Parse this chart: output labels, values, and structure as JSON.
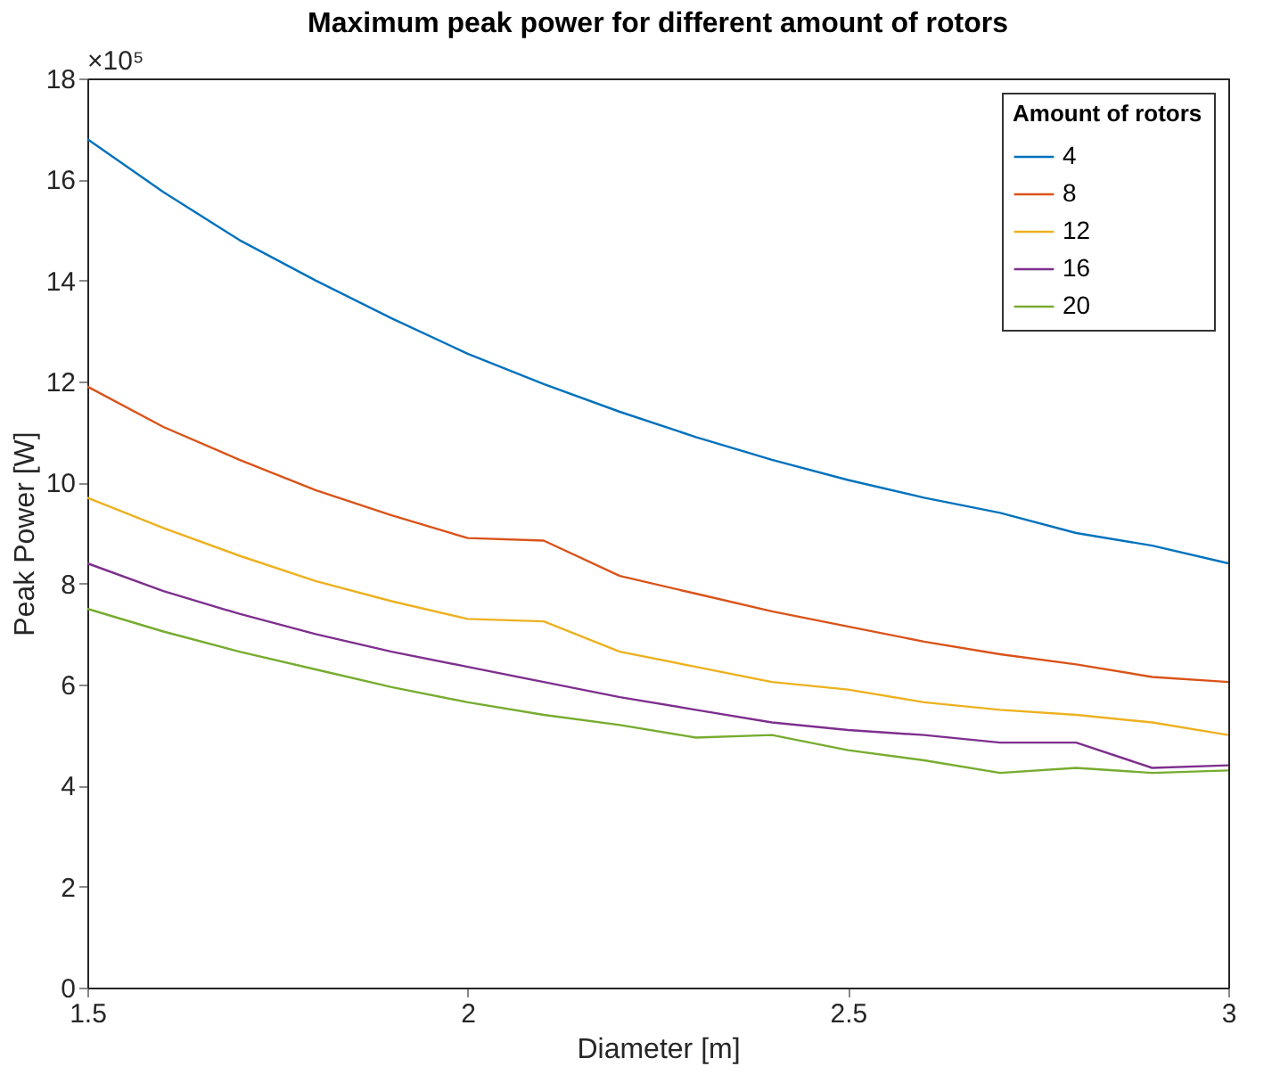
{
  "chart_data": {
    "type": "line",
    "title": "Maximum peak power for different amount of rotors",
    "xlabel": "Diameter [m]",
    "ylabel": "Peak Power [W]",
    "legend_title": "Amount of rotors",
    "x": [
      1.5,
      1.6,
      1.7,
      1.8,
      1.9,
      2.0,
      2.1,
      2.2,
      2.3,
      2.4,
      2.5,
      2.6,
      2.7,
      2.8,
      2.9,
      3.0
    ],
    "series": [
      {
        "name": "4",
        "color": "#0072bd",
        "values": [
          16.8,
          15.75,
          14.8,
          14.0,
          13.25,
          12.55,
          11.95,
          11.4,
          10.9,
          10.45,
          10.05,
          9.7,
          9.4,
          9.0,
          8.75,
          8.4
        ]
      },
      {
        "name": "8",
        "color": "#d95319",
        "values": [
          11.9,
          11.1,
          10.45,
          9.85,
          9.35,
          8.9,
          8.85,
          8.15,
          7.8,
          7.45,
          7.15,
          6.85,
          6.6,
          6.4,
          6.15,
          6.05
        ]
      },
      {
        "name": "12",
        "color": "#edb120",
        "values": [
          9.7,
          9.1,
          8.55,
          8.05,
          7.65,
          7.3,
          7.25,
          6.65,
          6.35,
          6.05,
          5.9,
          5.65,
          5.5,
          5.4,
          5.25,
          5.0
        ]
      },
      {
        "name": "16",
        "color": "#7e2f8e",
        "values": [
          8.4,
          7.85,
          7.4,
          7.0,
          6.65,
          6.35,
          6.05,
          5.75,
          5.5,
          5.25,
          5.1,
          5.0,
          4.85,
          4.85,
          4.35,
          4.4
        ]
      },
      {
        "name": "20",
        "color": "#77ac30",
        "values": [
          7.5,
          7.05,
          6.65,
          6.3,
          5.95,
          5.65,
          5.4,
          5.2,
          4.95,
          5.0,
          4.7,
          4.5,
          4.25,
          4.35,
          4.25,
          4.3
        ]
      }
    ],
    "xlim": [
      1.5,
      3
    ],
    "xticks": [
      1.5,
      2,
      2.5,
      3
    ],
    "ylim": [
      0,
      18
    ],
    "yticks": [
      0,
      2,
      4,
      6,
      8,
      10,
      12,
      14,
      16,
      18
    ],
    "annotations": [
      "×10⁵"
    ],
    "legend": "top right",
    "grid": false,
    "line_style": "solid",
    "marker": "none"
  }
}
